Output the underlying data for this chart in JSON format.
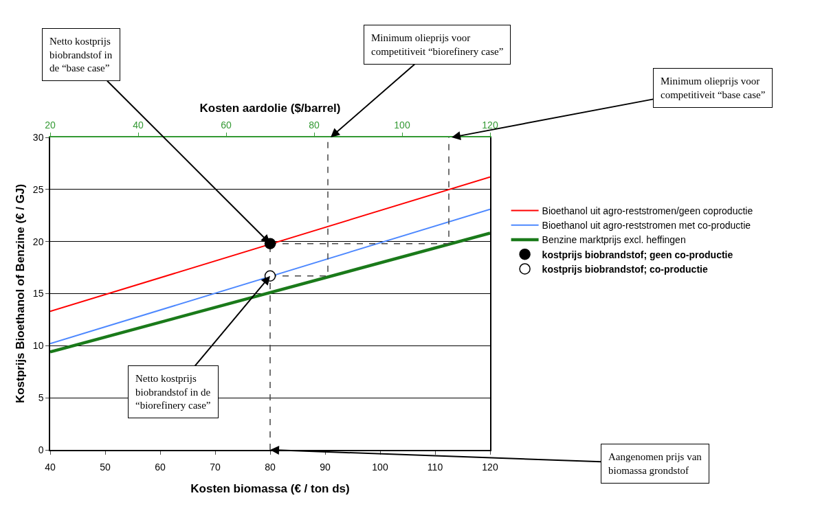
{
  "chart_data": {
    "type": "line",
    "xlabel": "Kosten biomassa (€ / ton ds)",
    "ylabel": "Kostprijs Bioethanol of Benzine (€ / GJ)",
    "x2label": "Kosten aardolie ($/barrel)",
    "xlim": [
      40,
      120
    ],
    "xticks": [
      40,
      50,
      60,
      70,
      80,
      90,
      100,
      110,
      120
    ],
    "ylim": [
      0,
      30
    ],
    "yticks": [
      0,
      5,
      10,
      15,
      20,
      25,
      30
    ],
    "x2lim": [
      20,
      120
    ],
    "x2ticks": [
      20,
      40,
      60,
      80,
      100,
      120
    ],
    "grid": "y",
    "legend": "right",
    "line_style": "solid",
    "marker": "none",
    "series": [
      {
        "name": "Bioethanol uit agro-reststromen/geen coproductie",
        "color": "#ff0000",
        "x": [
          40,
          120
        ],
        "values": [
          13.3,
          26.2
        ]
      },
      {
        "name": "Bioethanol uit agro-reststromen met co-productie",
        "color": "#4d88ff",
        "x": [
          40,
          120
        ],
        "values": [
          10.2,
          23.1
        ]
      },
      {
        "name": "Benzine marktprijs excl. heffingen",
        "color": "#1a7a1a",
        "x": [
          40,
          120
        ],
        "values": [
          9.4,
          20.8
        ]
      },
      {
        "color": "#444444",
        "x": [
          80,
          80
        ],
        "values": [
          0,
          19.8
        ],
        "line_style": "dashed"
      },
      {
        "color": "#444444",
        "x": [
          80,
          112.5,
          112.5
        ],
        "values": [
          19.8,
          19.8,
          30
        ],
        "line_style": "dashed"
      },
      {
        "color": "#444444",
        "x": [
          80,
          90.5,
          90.5
        ],
        "values": [
          16.7,
          16.7,
          30
        ],
        "line_style": "dashed"
      },
      {
        "name": "kostprijs biobrandstof; geen co-productie",
        "type": "scatter",
        "marker": "circle",
        "color": "#000000",
        "x": [
          80
        ],
        "values": [
          19.8
        ]
      },
      {
        "name": "kostprijs biobrandstof; co-productie",
        "type": "scatter",
        "marker": "circle",
        "color": "#ffffff",
        "x": [
          80
        ],
        "values": [
          16.7
        ]
      }
    ],
    "annotations": [
      {
        "text": "Netto kostprijs\nbiobrandstof in\nde “base case”",
        "x": 80,
        "y": 19.8
      },
      {
        "text": "Minimum olieprijs voor\ncompetitiveit “biorefinery case”",
        "x": 91,
        "y": 30
      },
      {
        "text": "Minimum olieprijs voor\ncompetitiveit “base case”",
        "x": 113,
        "y": 30
      },
      {
        "text": "Netto kostprijs\nbiobrandstof in de\n“biorefinery case”",
        "x": 80,
        "y": 16.7
      },
      {
        "text": "Aangenomen prijs van\nbiomassa grondstof",
        "x": 80,
        "y": 0
      }
    ]
  }
}
